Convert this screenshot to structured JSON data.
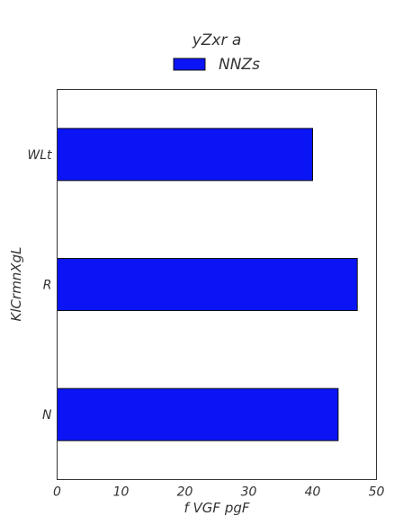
{
  "chart_data": {
    "type": "bar",
    "orientation": "horizontal",
    "categories": [
      "WLt",
      "R",
      "N"
    ],
    "series": [
      {
        "name": "NNZs",
        "values": [
          40,
          47,
          44
        ],
        "color": "#0a14f5"
      }
    ],
    "legend": {
      "title": "yZxr a",
      "placement": "top-center"
    },
    "xlabel": "f VGF pgF",
    "ylabel": "KlCrmnXgL",
    "xlim": [
      0,
      50
    ],
    "xticks": [
      "0",
      "10",
      "20",
      "30",
      "40",
      "50"
    ],
    "grid": false
  }
}
